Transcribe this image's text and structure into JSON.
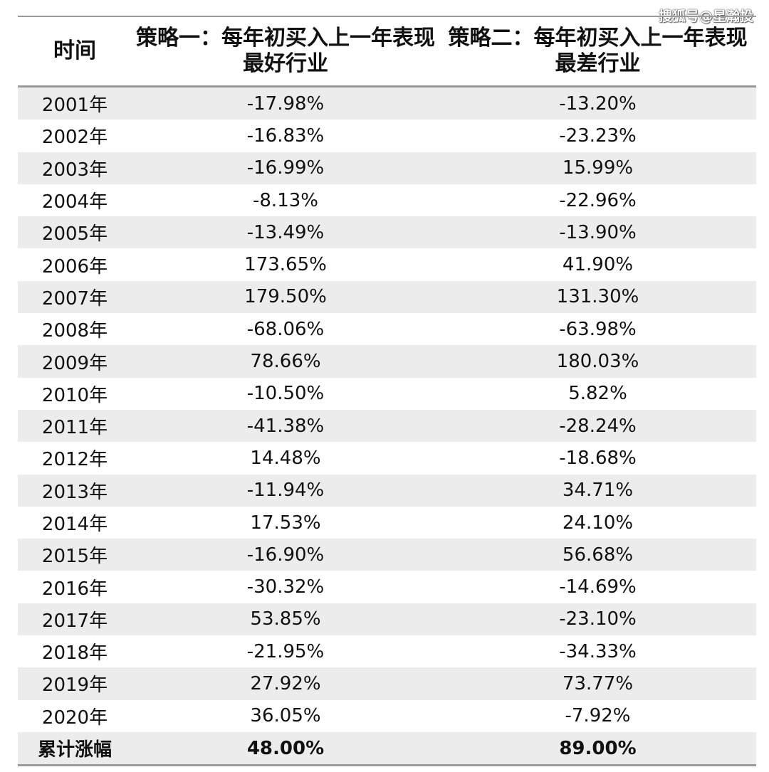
{
  "watermark": "搜狐号@星瀚投",
  "table": {
    "headers": [
      "时间",
      "策略一：每年初买入上一年表现最好行业",
      "策略二：每年初买入上一年表现最差行业"
    ],
    "rows": [
      {
        "year": "2001年",
        "s1": "-17.98%",
        "s2": "-13.20%"
      },
      {
        "year": "2002年",
        "s1": "-16.83%",
        "s2": "-23.23%"
      },
      {
        "year": "2003年",
        "s1": "-16.99%",
        "s2": "15.99%"
      },
      {
        "year": "2004年",
        "s1": "-8.13%",
        "s2": "-22.96%"
      },
      {
        "year": "2005年",
        "s1": "-13.49%",
        "s2": "-13.90%"
      },
      {
        "year": "2006年",
        "s1": "173.65%",
        "s2": "41.90%"
      },
      {
        "year": "2007年",
        "s1": "179.50%",
        "s2": "131.30%"
      },
      {
        "year": "2008年",
        "s1": "-68.06%",
        "s2": "-63.98%"
      },
      {
        "year": "2009年",
        "s1": "78.66%",
        "s2": "180.03%"
      },
      {
        "year": "2010年",
        "s1": "-10.50%",
        "s2": "5.82%"
      },
      {
        "year": "2011年",
        "s1": "-41.38%",
        "s2": "-28.24%"
      },
      {
        "year": "2012年",
        "s1": "14.48%",
        "s2": "-18.68%"
      },
      {
        "year": "2013年",
        "s1": "-11.94%",
        "s2": "34.71%"
      },
      {
        "year": "2014年",
        "s1": "17.53%",
        "s2": "24.10%"
      },
      {
        "year": "2015年",
        "s1": "-16.90%",
        "s2": "56.68%"
      },
      {
        "year": "2016年",
        "s1": "-30.32%",
        "s2": "-14.69%"
      },
      {
        "year": "2017年",
        "s1": "53.85%",
        "s2": "-23.10%"
      },
      {
        "year": "2018年",
        "s1": "-21.95%",
        "s2": "-34.33%"
      },
      {
        "year": "2019年",
        "s1": "27.92%",
        "s2": "73.77%"
      },
      {
        "year": "2020年",
        "s1": "36.05%",
        "s2": "-7.92%"
      }
    ],
    "total": {
      "label": "累计涨幅",
      "s1": "48.00%",
      "s2": "89.00%"
    }
  }
}
